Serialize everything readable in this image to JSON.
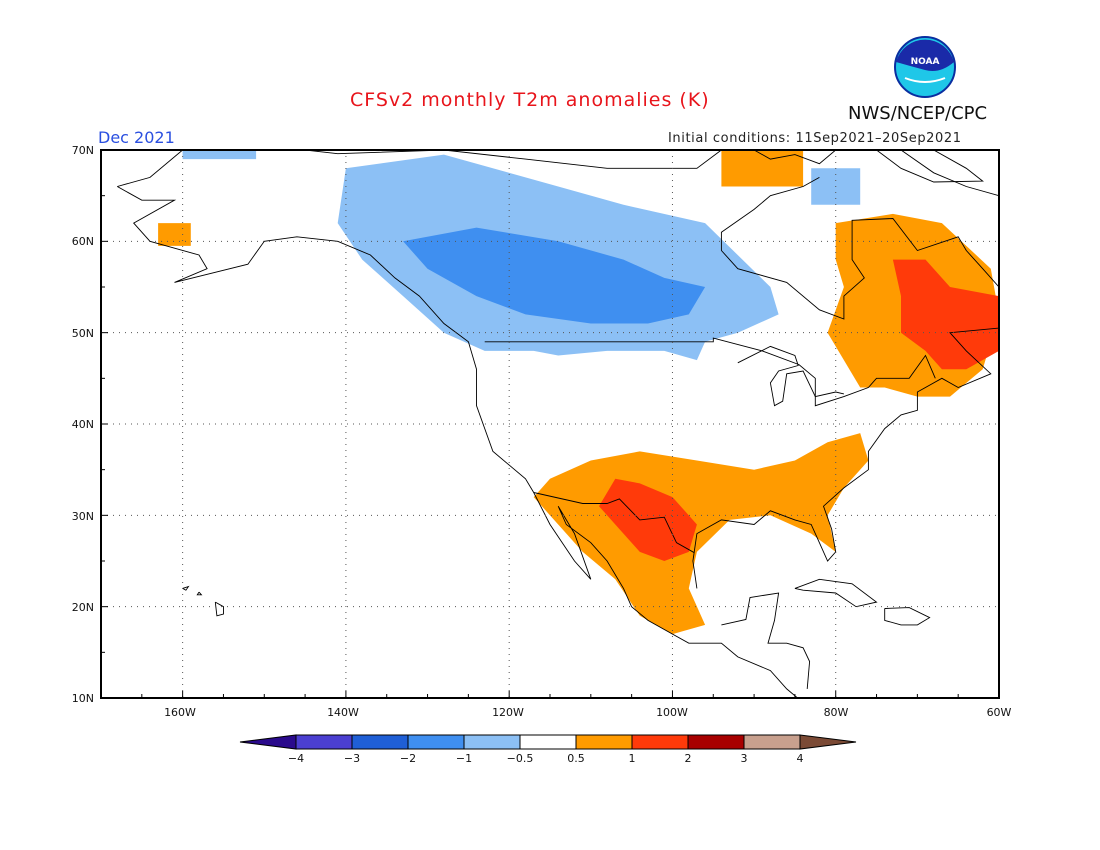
{
  "title": "CFSv2 monthly T2m anomalies (K)",
  "valid_month": "Dec 2021",
  "initial_conditions": "Initial conditions: 11Sep2021–20Sep2021",
  "agency": "NWS/NCEP/CPC",
  "logo_text": "NOAA",
  "lat_labels": [
    "70N",
    "60N",
    "50N",
    "40N",
    "30N",
    "20N",
    "10N"
  ],
  "lon_labels": [
    "160W",
    "140W",
    "120W",
    "100W",
    "80W",
    "60W"
  ],
  "colorbar": {
    "tick_labels": [
      "−4",
      "−3",
      "−2",
      "−1",
      "−0.5",
      "0.5",
      "1",
      "2",
      "3",
      "4"
    ],
    "bins": [
      {
        "range": "< -4",
        "color": "#2a0a8c"
      },
      {
        "range": "-4 to -3",
        "color": "#4b3fd1"
      },
      {
        "range": "-3 to -2",
        "color": "#1f5fd6"
      },
      {
        "range": "-2 to -1",
        "color": "#3f8ff0"
      },
      {
        "range": "-1 to -0.5",
        "color": "#8cc0f5"
      },
      {
        "range": "-0.5 to 0.5",
        "color": "#ffffff"
      },
      {
        "range": "0.5 to 1",
        "color": "#ff9b00"
      },
      {
        "range": "1 to 2",
        "color": "#ff3a0a"
      },
      {
        "range": "2 to 3",
        "color": "#a80000"
      },
      {
        "range": "3 to 4",
        "color": "#c8a08e"
      },
      {
        "range": "> 4",
        "color": "#7b4a35"
      }
    ]
  },
  "map": {
    "extent": {
      "lon_min": -170,
      "lon_max": -60,
      "lat_min": 10,
      "lat_max": 70
    },
    "anomaly_regions": [
      {
        "name": "canada-west-cold-0.5to1",
        "level": "-1 to -0.5",
        "color": "#8cc0f5",
        "polygon": [
          [
            -140,
            68
          ],
          [
            -128,
            69.5
          ],
          [
            -114,
            66
          ],
          [
            -106,
            64
          ],
          [
            -96,
            62
          ],
          [
            -88,
            55
          ],
          [
            -87,
            52
          ],
          [
            -92,
            50
          ],
          [
            -96,
            49
          ],
          [
            -97,
            47
          ],
          [
            -101,
            48
          ],
          [
            -108,
            48
          ],
          [
            -114,
            47.5
          ],
          [
            -117,
            48
          ],
          [
            -123,
            48
          ],
          [
            -128,
            50
          ],
          [
            -133,
            54
          ],
          [
            -138,
            58
          ],
          [
            -141,
            62
          ]
        ]
      },
      {
        "name": "canada-west-cold-1to2",
        "level": "-2 to -1",
        "color": "#3f8ff0",
        "polygon": [
          [
            -133,
            60
          ],
          [
            -124,
            61.5
          ],
          [
            -114,
            60
          ],
          [
            -106,
            58
          ],
          [
            -101,
            56
          ],
          [
            -96,
            55
          ],
          [
            -98,
            52
          ],
          [
            -103,
            51
          ],
          [
            -110,
            51
          ],
          [
            -118,
            52
          ],
          [
            -124,
            54
          ],
          [
            -130,
            57
          ]
        ]
      },
      {
        "name": "alaska-north-cold",
        "level": "-1 to -0.5",
        "color": "#8cc0f5",
        "polygon": [
          [
            -160,
            70
          ],
          [
            -151,
            70
          ],
          [
            -151,
            69
          ],
          [
            -160,
            69
          ]
        ]
      },
      {
        "name": "hudson-bay-cold",
        "level": "-1 to -0.5",
        "color": "#8cc0f5",
        "polygon": [
          [
            -83,
            68
          ],
          [
            -77,
            68
          ],
          [
            -77,
            64
          ],
          [
            -83,
            64
          ]
        ]
      },
      {
        "name": "alaska-southwest-warm",
        "level": "0.5 to 1",
        "color": "#ff9b00",
        "polygon": [
          [
            -163,
            62
          ],
          [
            -159,
            62
          ],
          [
            -159,
            59.5
          ],
          [
            -163,
            59.5
          ]
        ]
      },
      {
        "name": "nunavut-warm",
        "level": "0.5 to 1",
        "color": "#ff9b00",
        "polygon": [
          [
            -94,
            70
          ],
          [
            -84,
            70
          ],
          [
            -84,
            66
          ],
          [
            -94,
            66
          ]
        ]
      },
      {
        "name": "quebec-labrador-warm",
        "level": "0.5 to 1",
        "color": "#ff9b00",
        "polygon": [
          [
            -80,
            62
          ],
          [
            -73,
            63
          ],
          [
            -67,
            62
          ],
          [
            -61,
            57
          ],
          [
            -60,
            52
          ],
          [
            -62,
            46
          ],
          [
            -66,
            43
          ],
          [
            -70,
            43
          ],
          [
            -74,
            44
          ],
          [
            -77,
            44
          ],
          [
            -79,
            47
          ],
          [
            -81,
            50
          ],
          [
            -79,
            55
          ],
          [
            -80,
            58
          ]
        ]
      },
      {
        "name": "quebec-labrador-warm-1to2",
        "level": "1 to 2",
        "color": "#ff3a0a",
        "polygon": [
          [
            -73,
            58
          ],
          [
            -69,
            58
          ],
          [
            -66,
            55
          ],
          [
            -60,
            54
          ],
          [
            -60,
            48
          ],
          [
            -64,
            46
          ],
          [
            -67,
            46
          ],
          [
            -69,
            48
          ],
          [
            -72,
            50
          ],
          [
            -72,
            54
          ]
        ]
      },
      {
        "name": "us-southern-warm",
        "level": "0.5 to 1",
        "color": "#ff9b00",
        "polygon": [
          [
            -115,
            34
          ],
          [
            -110,
            36
          ],
          [
            -104,
            37
          ],
          [
            -97,
            36
          ],
          [
            -90,
            35
          ],
          [
            -85,
            36
          ],
          [
            -81,
            38
          ],
          [
            -77,
            39
          ],
          [
            -76,
            36
          ],
          [
            -79,
            33
          ],
          [
            -81,
            30
          ],
          [
            -80,
            26
          ],
          [
            -83,
            28
          ],
          [
            -88,
            30
          ],
          [
            -93,
            29.5
          ],
          [
            -97,
            26
          ],
          [
            -98,
            22
          ],
          [
            -96,
            18
          ],
          [
            -100,
            17
          ],
          [
            -104,
            19
          ],
          [
            -107,
            23
          ],
          [
            -111,
            26
          ],
          [
            -114,
            29
          ],
          [
            -117,
            32
          ]
        ]
      },
      {
        "name": "texas-mexico-warm-1to2",
        "level": "1 to 2",
        "color": "#ff3a0a",
        "polygon": [
          [
            -107,
            34
          ],
          [
            -104,
            33.5
          ],
          [
            -100,
            32
          ],
          [
            -97,
            29
          ],
          [
            -98,
            26
          ],
          [
            -101,
            25
          ],
          [
            -104,
            26
          ],
          [
            -107,
            29
          ],
          [
            -109,
            31
          ]
        ]
      }
    ]
  }
}
